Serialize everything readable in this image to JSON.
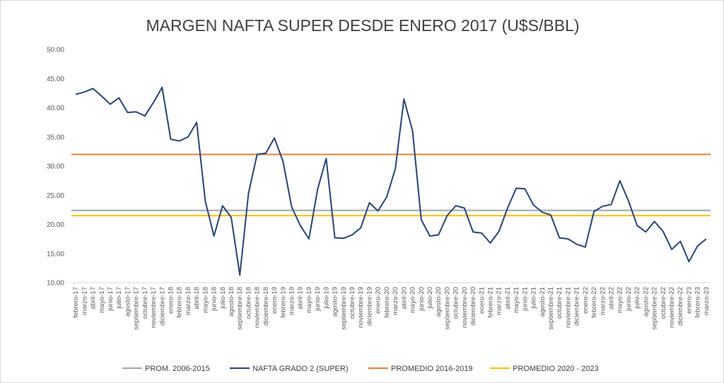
{
  "chart_data": {
    "type": "line",
    "title": "MARGEN NAFTA SUPER DESDE ENERO 2017 (U$S/BBL)",
    "xlabel": "",
    "ylabel": "",
    "ylim": [
      10,
      50
    ],
    "yticks": [
      "10.00",
      "15.00",
      "20.00",
      "25.00",
      "30.00",
      "35.00",
      "40.00",
      "45.00",
      "50.00"
    ],
    "grid": "horizontal",
    "legend_position": "bottom",
    "categories": [
      "febrero-17",
      "marzo-17",
      "abril-17",
      "mayo-17",
      "junio-17",
      "julio-17",
      "agosto-17",
      "septiembre-17",
      "octubre-17",
      "noviembre-17",
      "diciembre-17",
      "enero-18",
      "febrero-18",
      "marzo-18",
      "abril-18",
      "mayo-18",
      "junio-18",
      "julio-18",
      "agosto-18",
      "septiembre-18",
      "octubre-18",
      "noviembre-18",
      "diciembre-18",
      "enero-19",
      "febrero-19",
      "marzo-19",
      "abril-19",
      "mayo-19",
      "junio-19",
      "julio-19",
      "agosto-19",
      "septiembre-19",
      "octubre-19",
      "noviembre-19",
      "diciembre-19",
      "enero-20",
      "febrero-20",
      "marzo-20",
      "abril-20",
      "mayo-20",
      "junio-20",
      "julio-20",
      "agosto-20",
      "septiembre-20",
      "octubre-20",
      "noviembre-20",
      "diciembre-20",
      "enero-21",
      "febrero-21",
      "marzo-21",
      "abril-21",
      "mayo-21",
      "junio-21",
      "julio-21",
      "agosto-21",
      "septiembre-21",
      "octubre-21",
      "noviembre-21",
      "diciembre-21",
      "enero-22",
      "febrero-22",
      "marzo-22",
      "abril-22",
      "mayo-22",
      "junio-22",
      "julio-22",
      "agosto-22",
      "septiembre-22",
      "octubre-22",
      "noviembre-22",
      "diciembre-22",
      "enero-23",
      "febrero-23",
      "marzo-23"
    ],
    "series": [
      {
        "name": "PROM. 2006-2015",
        "color": "#a6a6a6",
        "constant": 22.4
      },
      {
        "name": "NAFTA GRADO 2 (SUPER)",
        "color": "#264478",
        "values": [
          42.3,
          42.7,
          43.3,
          42.0,
          40.6,
          41.7,
          39.2,
          39.3,
          38.6,
          40.9,
          43.5,
          34.6,
          34.3,
          35.0,
          37.5,
          24.0,
          18.0,
          23.2,
          21.2,
          11.3,
          25.3,
          32.0,
          32.2,
          34.8,
          30.8,
          23.0,
          19.8,
          17.5,
          26.0,
          31.3,
          17.7,
          17.6,
          18.2,
          19.4,
          23.7,
          22.3,
          24.7,
          29.5,
          41.5,
          36.0,
          20.8,
          18.0,
          18.2,
          21.5,
          23.2,
          22.8,
          18.7,
          18.5,
          16.8,
          18.8,
          22.8,
          26.2,
          26.1,
          23.3,
          22.1,
          21.6,
          17.7,
          17.5,
          16.6,
          16.1,
          22.2,
          23.1,
          23.4,
          27.5,
          24.0,
          19.8,
          18.7,
          20.5,
          18.8,
          15.7,
          17.1,
          13.6,
          16.3,
          17.5
        ]
      },
      {
        "name": "PROMEDIO 2016-2019",
        "color": "#ed7d31",
        "constant": 32.0
      },
      {
        "name": "PROMEDIO 2020 - 2023",
        "color": "#ffc000",
        "constant": 21.5
      }
    ]
  }
}
